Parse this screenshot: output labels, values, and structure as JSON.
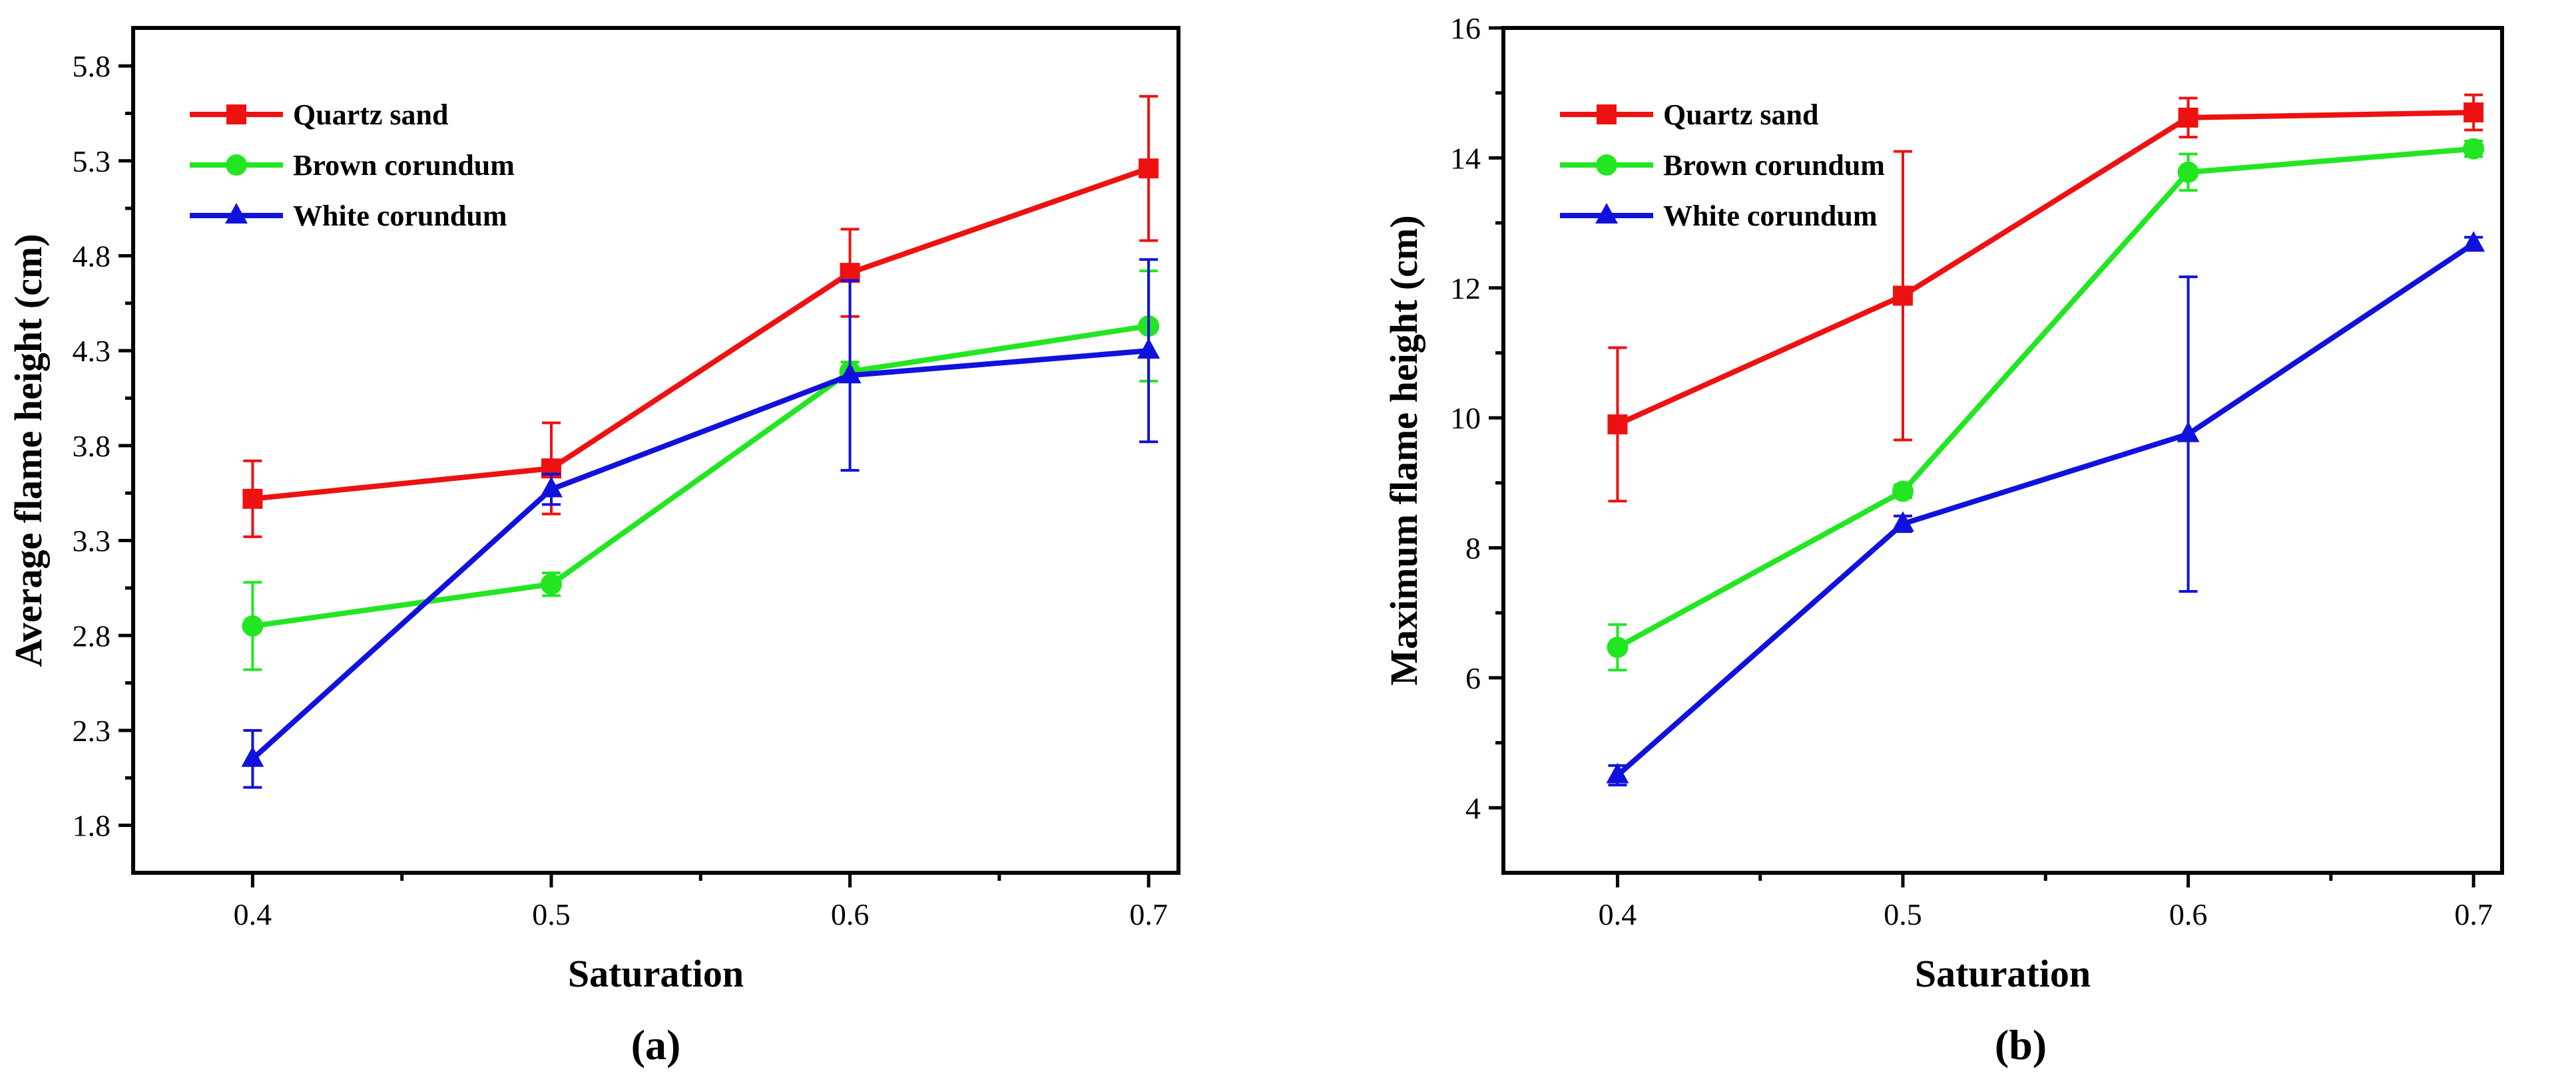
{
  "colors": {
    "quartz": "#ee1111",
    "brown": "#22e622",
    "white": "#1111dd",
    "axis": "#000000"
  },
  "chart_data": [
    {
      "type": "line",
      "panel_label": "(a)",
      "xlabel": "Saturation",
      "ylabel": "Average flame height (cm)",
      "xlim": [
        0.36,
        0.71
      ],
      "ylim": [
        1.55,
        6.0
      ],
      "xticks": [
        0.4,
        0.5,
        0.6,
        0.7
      ],
      "xtick_labels": [
        "0.4",
        "0.5",
        "0.6",
        "0.7"
      ],
      "yticks": [
        1.8,
        2.3,
        2.8,
        3.3,
        3.8,
        4.3,
        4.8,
        5.3,
        5.8
      ],
      "ytick_labels": [
        "1.8",
        "2.3",
        "2.8",
        "3.3",
        "3.8",
        "4.3",
        "4.8",
        "5.3",
        "5.8"
      ],
      "legend_position": "top-left",
      "x": [
        0.4,
        0.5,
        0.6,
        0.7
      ],
      "series": [
        {
          "name": "Quartz sand",
          "color_key": "quartz",
          "marker": "square",
          "values": [
            3.52,
            3.68,
            4.71,
            5.26
          ],
          "errors": [
            0.2,
            0.24,
            0.23,
            0.38
          ]
        },
        {
          "name": "Brown corundum",
          "color_key": "brown",
          "marker": "circle",
          "values": [
            2.85,
            3.07,
            4.19,
            4.43
          ],
          "errors": [
            0.23,
            0.06,
            0.05,
            0.29
          ]
        },
        {
          "name": "White corundum",
          "color_key": "white",
          "marker": "triangle",
          "values": [
            2.15,
            3.57,
            4.17,
            4.3
          ],
          "errors": [
            0.15,
            0.08,
            0.5,
            0.48
          ]
        }
      ]
    },
    {
      "type": "line",
      "panel_label": "(b)",
      "xlabel": "Saturation",
      "ylabel": "Maximum flame height (cm)",
      "xlim": [
        0.36,
        0.71
      ],
      "ylim": [
        3.0,
        16.0
      ],
      "xticks": [
        0.4,
        0.5,
        0.6,
        0.7
      ],
      "xtick_labels": [
        "0.4",
        "0.5",
        "0.6",
        "0.7"
      ],
      "yticks": [
        4,
        6,
        8,
        10,
        12,
        14,
        16
      ],
      "ytick_labels": [
        "4",
        "6",
        "8",
        "10",
        "12",
        "14",
        "16"
      ],
      "legend_position": "top-left",
      "x": [
        0.4,
        0.5,
        0.6,
        0.7
      ],
      "series": [
        {
          "name": "Quartz sand",
          "color_key": "quartz",
          "marker": "square",
          "values": [
            9.9,
            11.88,
            14.62,
            14.7
          ],
          "errors": [
            1.18,
            2.22,
            0.3,
            0.27
          ]
        },
        {
          "name": "Brown corundum",
          "color_key": "brown",
          "marker": "circle",
          "values": [
            6.47,
            8.87,
            13.78,
            14.14
          ],
          "errors": [
            0.35,
            0.1,
            0.28,
            0.12
          ]
        },
        {
          "name": "White corundum",
          "color_key": "white",
          "marker": "triangle",
          "values": [
            4.5,
            8.37,
            9.75,
            12.68
          ],
          "errors": [
            0.15,
            0.12,
            2.42,
            0.1
          ]
        }
      ]
    }
  ]
}
